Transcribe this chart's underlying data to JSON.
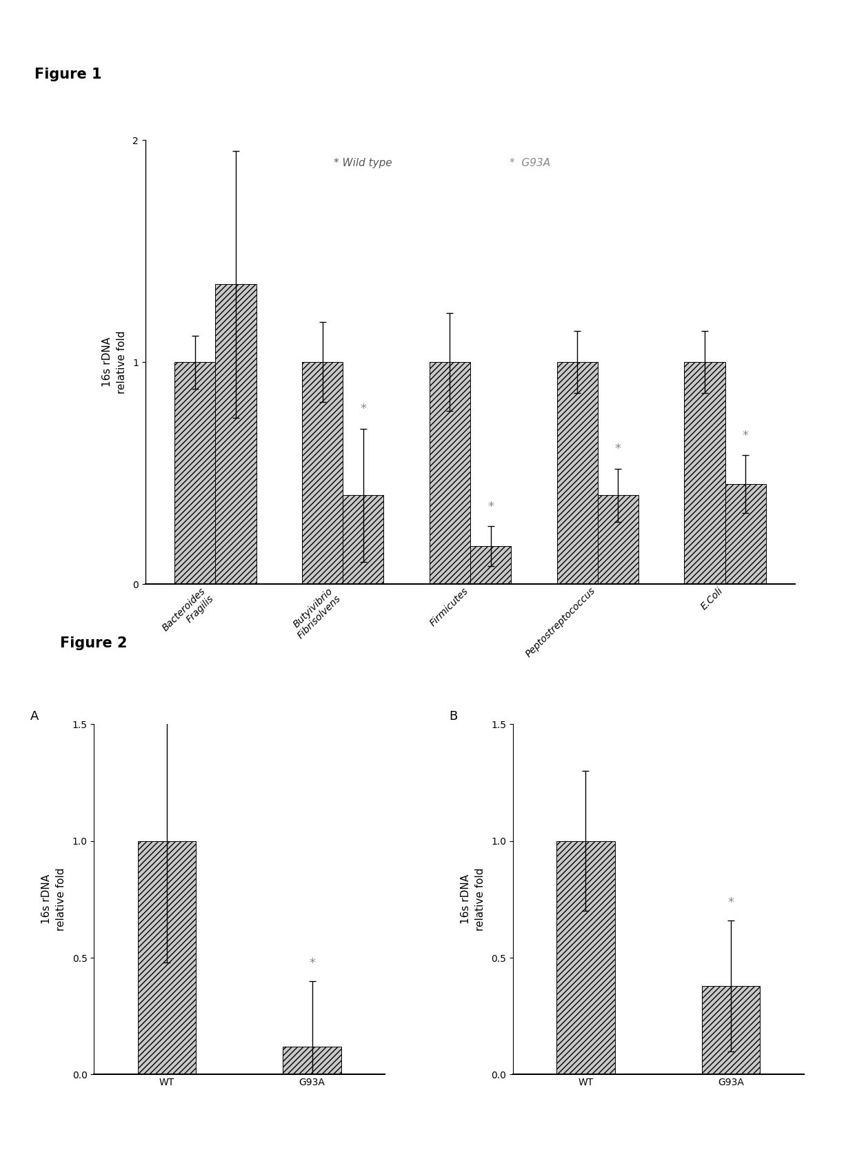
{
  "fig1": {
    "categories": [
      "Bacteroides\nFragilis",
      "Butyivibrio\nFibrisolvens",
      "Firmicutes",
      "Peptostreptococcus",
      "E.Coli"
    ],
    "wt_values": [
      1.0,
      1.0,
      1.0,
      1.0,
      1.0
    ],
    "wt_errors": [
      0.12,
      0.18,
      0.22,
      0.14,
      0.14
    ],
    "g93a_values": [
      1.35,
      0.4,
      0.17,
      0.4,
      0.45
    ],
    "g93a_errors": [
      0.6,
      0.3,
      0.09,
      0.12,
      0.13
    ],
    "ylim": [
      0,
      2
    ],
    "yticks": [
      0,
      1,
      2
    ],
    "ylabel": "16s rDNA\nrelative fold",
    "legend_wt": "Wild type",
    "legend_g93a": "G93A",
    "bar_color": "#c8c8c8",
    "hatch": "////",
    "sig_cat_indices": [
      1,
      2,
      3,
      4
    ],
    "wt_sig_indices": []
  },
  "fig2a": {
    "panel_label": "A",
    "categories": [
      "WT",
      "G93A"
    ],
    "values": [
      1.0,
      0.12
    ],
    "errors": [
      0.52,
      0.28
    ],
    "ylim": [
      0,
      1.5
    ],
    "yticks": [
      0.0,
      0.5,
      1.0,
      1.5
    ],
    "ylabel": "16s rDNA\nrelative fold"
  },
  "fig2b": {
    "panel_label": "B",
    "categories": [
      "WT",
      "G93A"
    ],
    "values": [
      1.0,
      0.38
    ],
    "errors": [
      0.3,
      0.28
    ],
    "ylim": [
      0,
      1.5
    ],
    "yticks": [
      0,
      0.5,
      1.0,
      1.5
    ],
    "ylabel": "16s rDNA\nrelative fold"
  },
  "bar_color": "#c8c8c8",
  "hatch": "////",
  "figure_label_fontsize": 15,
  "panel_label_fontsize": 13,
  "axis_label_fontsize": 11,
  "tick_fontsize": 10,
  "legend_fontsize": 11,
  "sig_fontsize": 13,
  "bar_width": 0.32,
  "background_color": "#ffffff"
}
